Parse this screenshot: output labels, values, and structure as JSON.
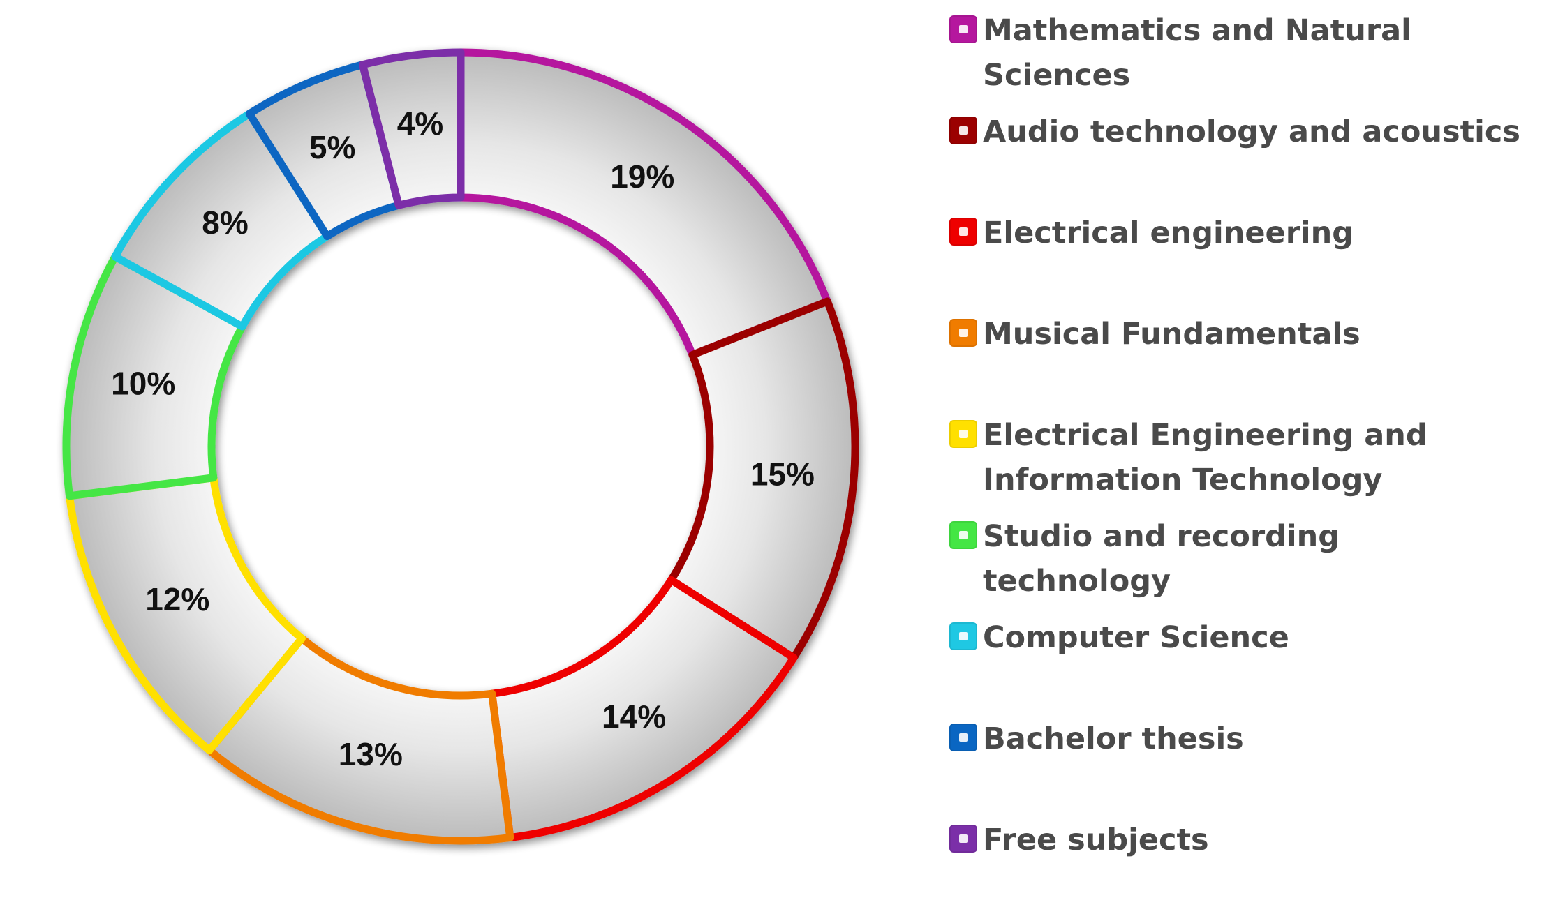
{
  "chart_data": {
    "type": "pie",
    "variant": "donut",
    "title": "",
    "legend_position": "right",
    "slices": [
      {
        "label": "Mathematics and Natural Sciences",
        "value": 19,
        "display": "19%",
        "color": "#B5179E"
      },
      {
        "label": "Audio technology and acoustics",
        "value": 15,
        "display": "15%",
        "color": "#9B0000"
      },
      {
        "label": "Electrical engineering",
        "value": 14,
        "display": "14%",
        "color": "#EE0000"
      },
      {
        "label": "Musical Fundamentals",
        "value": 13,
        "display": "13%",
        "color": "#F07C00"
      },
      {
        "label": "Electrical Engineering and Information Technology",
        "value": 12,
        "display": "12%",
        "color": "#FFE000"
      },
      {
        "label": "Studio and recording technology",
        "value": 10,
        "display": "10%",
        "color": "#44E644"
      },
      {
        "label": "Computer Science",
        "value": 8,
        "display": "8%",
        "color": "#1FC8E3"
      },
      {
        "label": "Bachelor thesis",
        "value": 5,
        "display": "5%",
        "color": "#0A66C2"
      },
      {
        "label": "Free subjects",
        "value": 4,
        "display": "4%",
        "color": "#7B2FA8"
      }
    ]
  }
}
